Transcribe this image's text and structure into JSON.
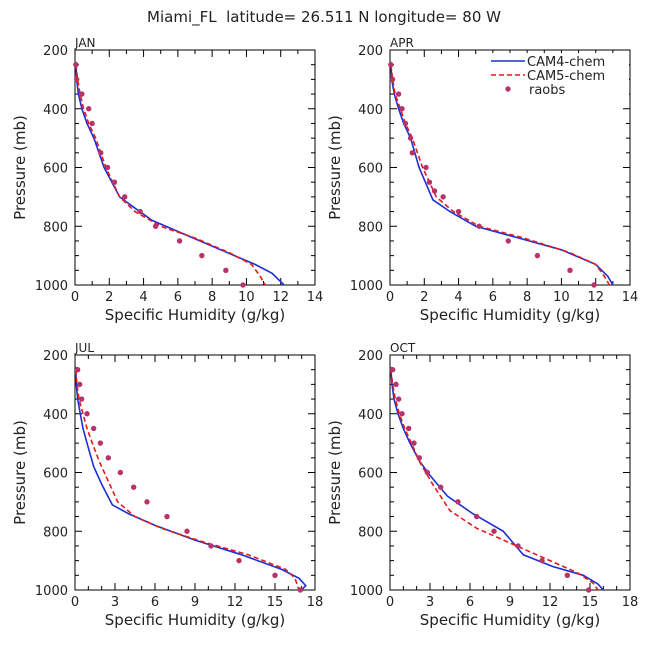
{
  "title": "Miami_FL  latitude= 26.511 N longitude= 80 W",
  "colors": {
    "cam4": "#1f2fd6",
    "cam5": "#e21b1b",
    "raobs": "#b8336a",
    "axis": "#000000"
  },
  "legend": {
    "placement": "top-right of APR panel",
    "cam4": "CAM4-chem",
    "cam5": "CAM5-chem",
    "raobs": "raobs"
  },
  "chart_data": [
    {
      "type": "line",
      "title": "JAN",
      "xlabel": "Specific Humidity (g/kg)",
      "ylabel": "Pressure (mb)",
      "xlim": [
        0,
        14
      ],
      "ylim": [
        200,
        1000
      ],
      "y_inverted": true,
      "xticks": [
        0,
        2,
        4,
        6,
        8,
        10,
        12,
        14
      ],
      "yticks": [
        200,
        400,
        600,
        800,
        1000
      ],
      "series": [
        {
          "name": "CAM4-chem",
          "style": "solid",
          "x": [
            0.05,
            0.1,
            0.2,
            0.4,
            0.7,
            1.1,
            1.7,
            2.6,
            3.3,
            4.5,
            6.5,
            8.5,
            10.5,
            11.5,
            12.2
          ],
          "y": [
            240,
            300,
            350,
            400,
            450,
            500,
            600,
            700,
            730,
            780,
            830,
            880,
            930,
            960,
            1000
          ]
        },
        {
          "name": "CAM5-chem",
          "style": "dashed",
          "x": [
            0.05,
            0.15,
            0.3,
            0.5,
            0.8,
            1.2,
            1.8,
            2.6,
            3.5,
            5.0,
            7.0,
            9.0,
            10.3,
            10.8,
            11.1
          ],
          "y": [
            250,
            300,
            350,
            400,
            450,
            500,
            600,
            700,
            750,
            800,
            840,
            890,
            930,
            970,
            1000
          ]
        },
        {
          "name": "raobs",
          "style": "points",
          "x": [
            0.05,
            0.1,
            0.4,
            0.8,
            1.0,
            1.5,
            1.9,
            2.3,
            2.9,
            3.8,
            4.7,
            6.1,
            7.4,
            8.8,
            9.8
          ],
          "y": [
            250,
            300,
            350,
            400,
            450,
            550,
            600,
            650,
            700,
            750,
            800,
            850,
            900,
            950,
            1000
          ]
        }
      ]
    },
    {
      "type": "line",
      "title": "APR",
      "xlabel": "Specific Humidity (g/kg)",
      "ylabel": "Pressure (mb)",
      "xlim": [
        0,
        14
      ],
      "ylim": [
        200,
        1000
      ],
      "y_inverted": true,
      "xticks": [
        0,
        2,
        4,
        6,
        8,
        10,
        12,
        14
      ],
      "yticks": [
        200,
        400,
        600,
        800,
        1000
      ],
      "series": [
        {
          "name": "CAM4-chem",
          "style": "solid",
          "x": [
            0.05,
            0.1,
            0.25,
            0.5,
            0.8,
            1.2,
            1.7,
            2.5,
            3.5,
            5.0,
            7.5,
            10.0,
            12.0,
            12.7,
            13.0
          ],
          "y": [
            240,
            300,
            350,
            400,
            450,
            500,
            600,
            710,
            750,
            800,
            840,
            880,
            930,
            970,
            1000
          ]
        },
        {
          "name": "CAM5-chem",
          "style": "dashed",
          "x": [
            0.05,
            0.15,
            0.3,
            0.6,
            0.9,
            1.3,
            1.9,
            2.7,
            3.7,
            5.2,
            7.8,
            10.5,
            12.0,
            12.5,
            12.8
          ],
          "y": [
            250,
            300,
            350,
            400,
            450,
            500,
            600,
            700,
            750,
            800,
            840,
            890,
            930,
            970,
            1000
          ]
        },
        {
          "name": "raobs",
          "style": "points",
          "x": [
            0.05,
            0.15,
            0.5,
            0.7,
            0.9,
            1.2,
            1.3,
            2.1,
            2.3,
            2.6,
            3.1,
            4.0,
            5.2,
            6.9,
            8.6,
            10.5,
            11.9
          ],
          "y": [
            250,
            300,
            350,
            400,
            450,
            500,
            550,
            600,
            650,
            680,
            700,
            750,
            800,
            850,
            900,
            950,
            1000
          ]
        }
      ]
    },
    {
      "type": "line",
      "title": "JUL",
      "xlabel": "Specific Humidity (g/kg)",
      "ylabel": "Pressure (mb)",
      "xlim": [
        0,
        18
      ],
      "ylim": [
        200,
        1000
      ],
      "y_inverted": true,
      "xticks": [
        0,
        3,
        6,
        9,
        12,
        15,
        18
      ],
      "yticks": [
        200,
        400,
        600,
        800,
        1000
      ],
      "series": [
        {
          "name": "CAM4-chem",
          "style": "solid",
          "x": [
            0.05,
            0.1,
            0.2,
            0.4,
            0.6,
            0.9,
            1.4,
            2.0,
            2.8,
            4.0,
            6.0,
            9.0,
            12.5,
            15.5,
            16.8,
            17.3,
            17.0
          ],
          "y": [
            240,
            300,
            350,
            400,
            450,
            500,
            580,
            640,
            710,
            740,
            780,
            830,
            880,
            930,
            960,
            985,
            1000
          ]
        },
        {
          "name": "CAM5-chem",
          "style": "dashed",
          "x": [
            0.05,
            0.15,
            0.3,
            0.6,
            0.9,
            1.3,
            1.8,
            2.4,
            3.2,
            4.5,
            6.5,
            9.5,
            13.0,
            15.8,
            16.5,
            16.8
          ],
          "y": [
            250,
            300,
            350,
            400,
            450,
            500,
            560,
            620,
            700,
            750,
            790,
            835,
            880,
            930,
            960,
            1000
          ]
        },
        {
          "name": "raobs",
          "style": "points",
          "x": [
            0.2,
            0.35,
            0.5,
            0.9,
            1.4,
            1.9,
            2.5,
            3.4,
            4.4,
            5.4,
            6.9,
            8.4,
            10.2,
            12.3,
            15.0,
            16.9
          ],
          "y": [
            250,
            300,
            350,
            400,
            450,
            500,
            550,
            600,
            650,
            700,
            750,
            800,
            850,
            900,
            950,
            1000
          ]
        }
      ]
    },
    {
      "type": "line",
      "title": "OCT",
      "xlabel": "Specific Humidity (g/kg)",
      "ylabel": "Pressure (mb)",
      "xlim": [
        0,
        18
      ],
      "ylim": [
        200,
        1000
      ],
      "y_inverted": true,
      "xticks": [
        0,
        3,
        6,
        9,
        12,
        15,
        18
      ],
      "yticks": [
        200,
        400,
        600,
        800,
        1000
      ],
      "series": [
        {
          "name": "CAM4-chem",
          "style": "solid",
          "x": [
            0.05,
            0.15,
            0.3,
            0.6,
            1.0,
            1.5,
            2.2,
            3.0,
            4.3,
            6.2,
            8.5,
            10.0,
            12.2,
            14.5,
            15.6,
            16.0
          ],
          "y": [
            240,
            300,
            350,
            400,
            450,
            500,
            560,
            610,
            680,
            740,
            800,
            880,
            920,
            950,
            980,
            1000
          ]
        },
        {
          "name": "CAM5-chem",
          "style": "dashed",
          "x": [
            0.05,
            0.2,
            0.4,
            0.7,
            1.1,
            1.6,
            2.3,
            3.2,
            4.5,
            6.5,
            9.0,
            11.5,
            14.0,
            15.2,
            15.6
          ],
          "y": [
            250,
            300,
            350,
            400,
            450,
            500,
            570,
            640,
            730,
            790,
            840,
            890,
            940,
            975,
            1000
          ]
        },
        {
          "name": "raobs",
          "style": "points",
          "x": [
            0.2,
            0.45,
            0.65,
            0.9,
            1.4,
            1.8,
            2.2,
            2.8,
            3.8,
            5.1,
            6.5,
            7.8,
            9.6,
            11.4,
            13.3,
            14.9
          ],
          "y": [
            250,
            300,
            350,
            400,
            450,
            500,
            550,
            600,
            650,
            700,
            750,
            800,
            850,
            900,
            950,
            1000
          ]
        }
      ]
    }
  ]
}
